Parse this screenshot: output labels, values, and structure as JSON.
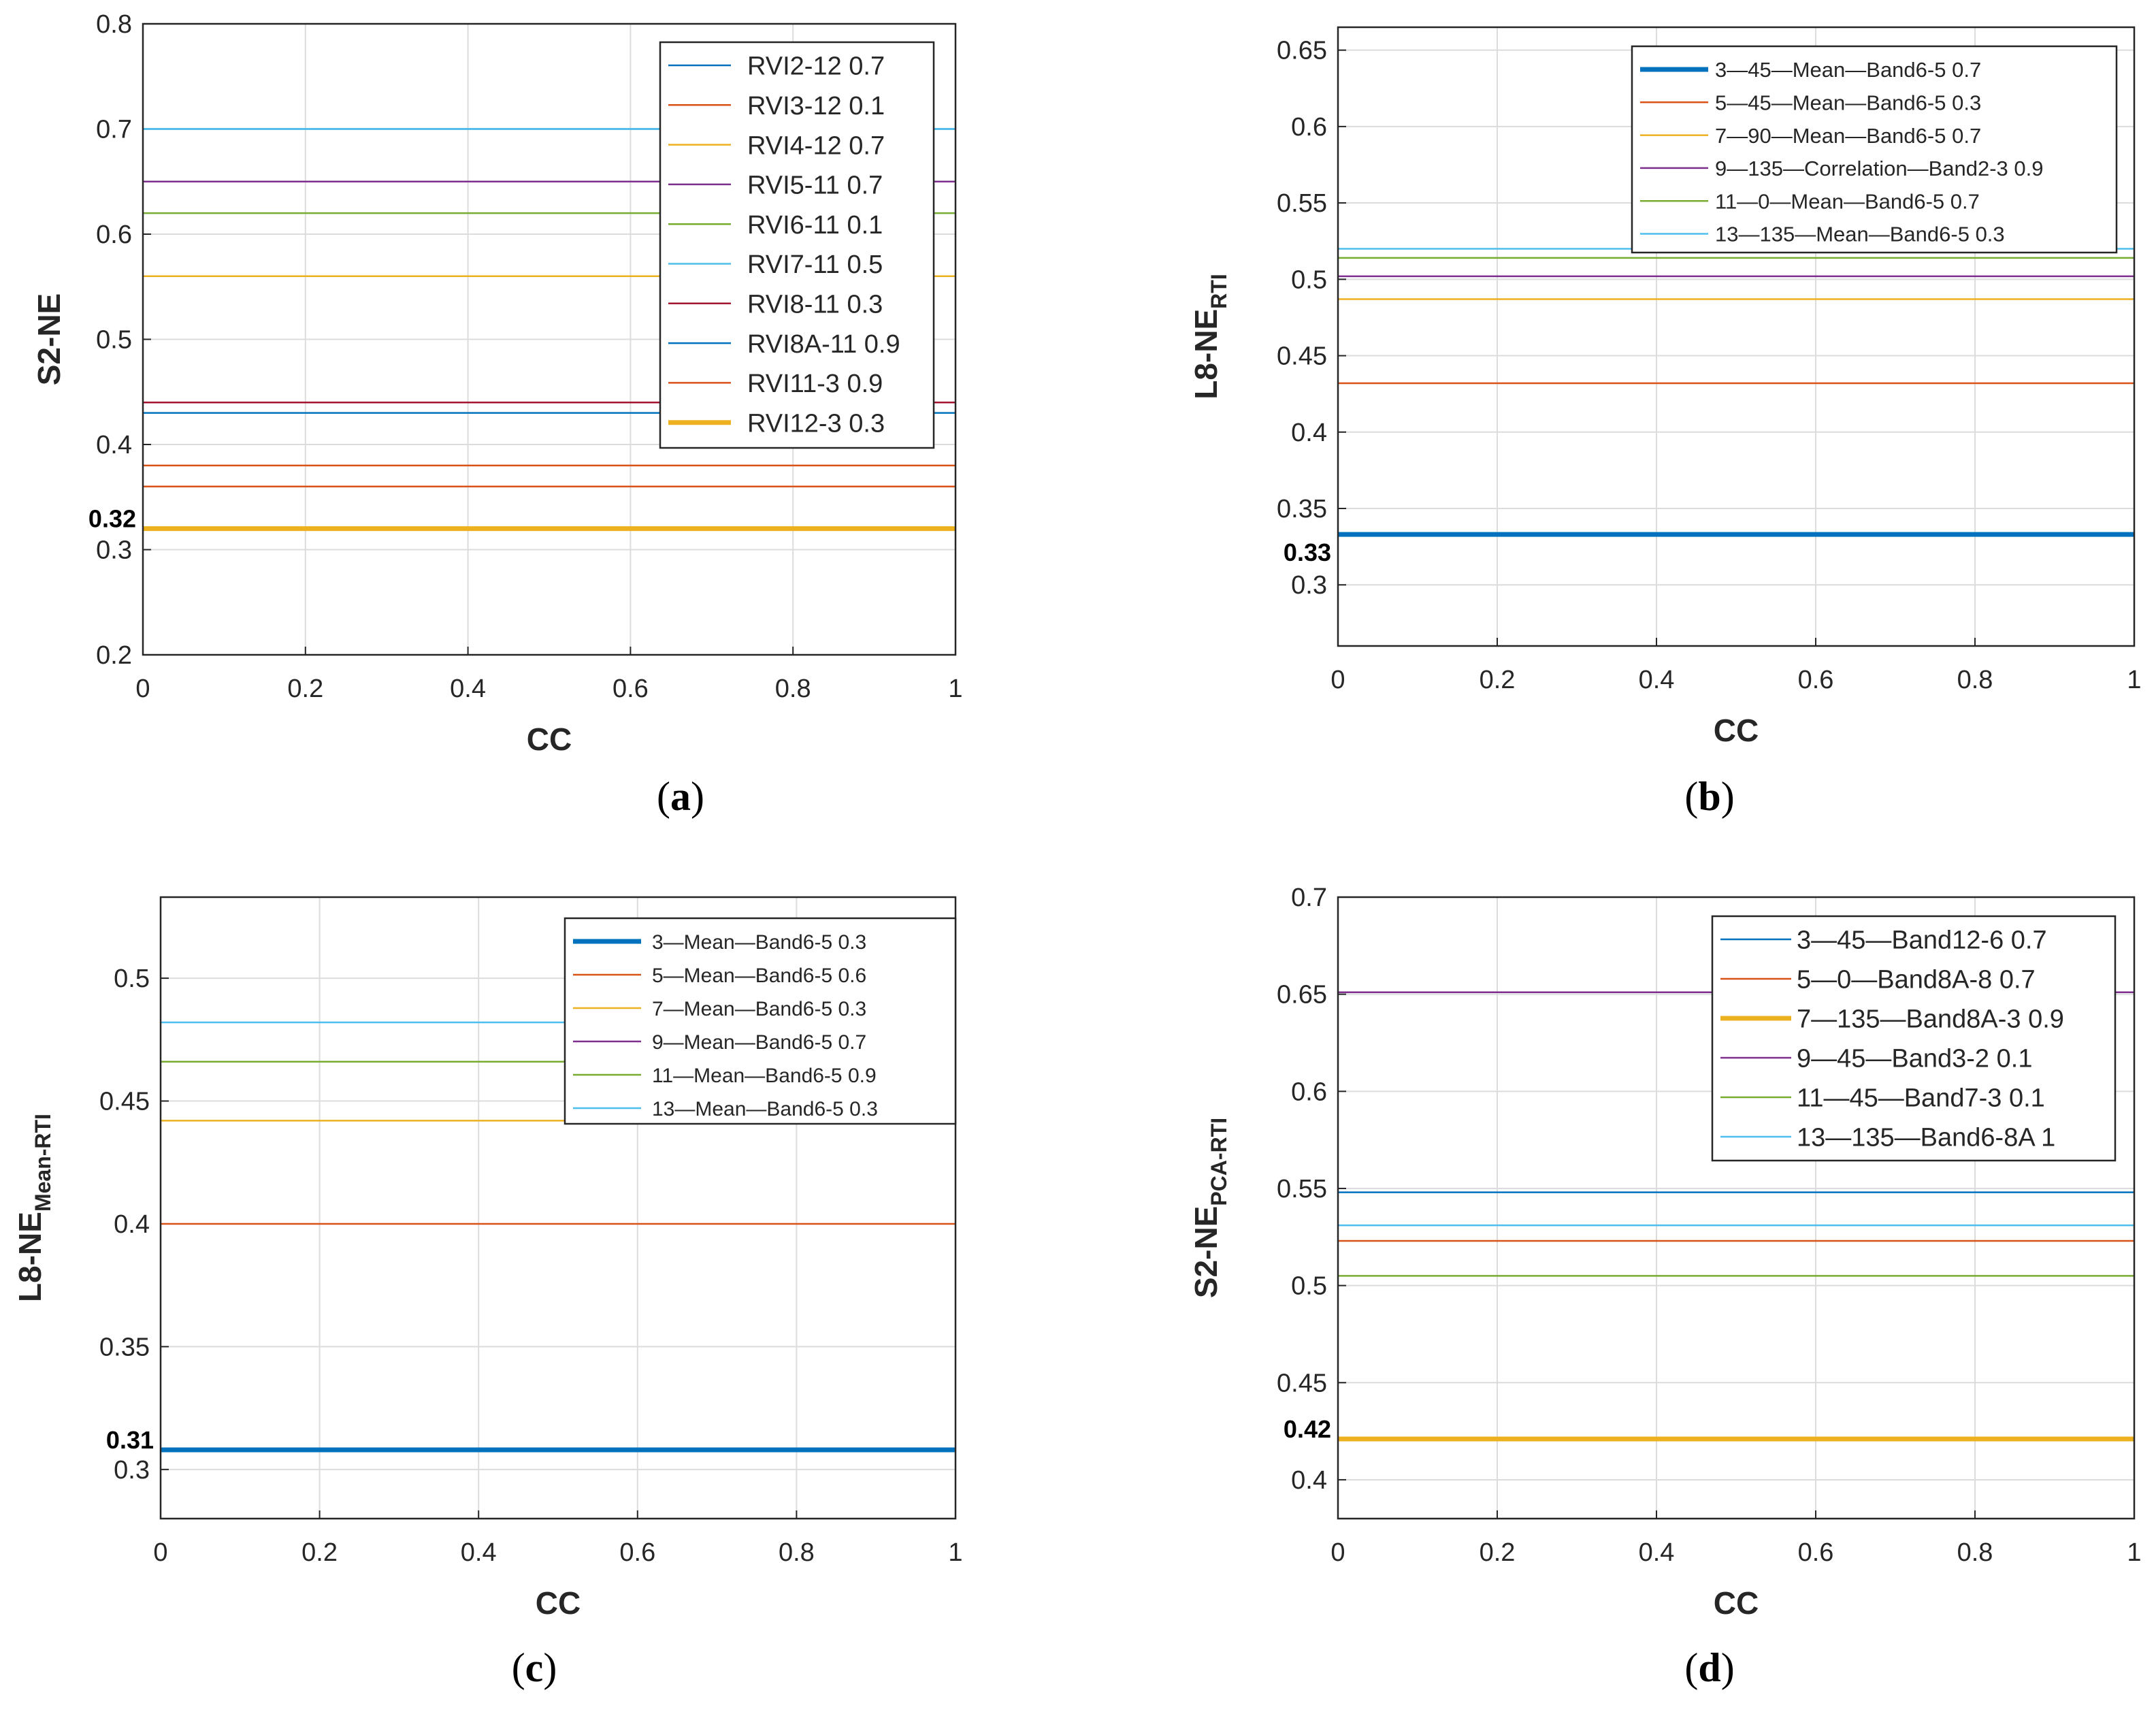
{
  "colors": {
    "c1": "#0072BD",
    "c2": "#D95319",
    "c3": "#EDB120",
    "c4": "#7E2F8E",
    "c5": "#77AC30",
    "c6": "#4DBEEE",
    "c7": "#A2142F",
    "grid": "#dcdcdc",
    "axis": "#262626"
  },
  "chart_data": [
    {
      "id": "a",
      "type": "line",
      "panel_label": {
        "open": "(",
        "letter": "a",
        "close": ")"
      },
      "xlabel": "CC",
      "ylabel": "S2-NE",
      "ylabel_sub": "",
      "xlim": [
        0,
        1
      ],
      "ylim": [
        0.2,
        0.8
      ],
      "xticks": [
        "0",
        "0.2",
        "0.4",
        "0.6",
        "0.8",
        "1"
      ],
      "yticks": [
        "0.2",
        "0.3",
        "0.4",
        "0.5",
        "0.6",
        "0.7",
        "0.8"
      ],
      "legend_position": "top-right",
      "annotation": {
        "text": "0.32",
        "value": 0.32
      },
      "series": [
        {
          "name": "RVI2-12 0.7",
          "value": 0.7,
          "color": "#0072BD",
          "highlight": false
        },
        {
          "name": "RVI3-12 0.1",
          "value": 0.36,
          "color": "#D95319",
          "highlight": false
        },
        {
          "name": "RVI4-12 0.7",
          "value": 0.56,
          "color": "#EDB120",
          "highlight": false
        },
        {
          "name": "RVI5-11 0.7",
          "value": 0.65,
          "color": "#7E2F8E",
          "highlight": false
        },
        {
          "name": "RVI6-11 0.1",
          "value": 0.62,
          "color": "#77AC30",
          "highlight": false
        },
        {
          "name": "RVI7-11 0.5",
          "value": 0.7,
          "color": "#4DBEEE",
          "highlight": false
        },
        {
          "name": "RVI8-11 0.3",
          "value": 0.44,
          "color": "#A2142F",
          "highlight": false
        },
        {
          "name": "RVI8A-11 0.9",
          "value": 0.43,
          "color": "#0072BD",
          "highlight": false
        },
        {
          "name": "RVI11-3 0.9",
          "value": 0.38,
          "color": "#D95319",
          "highlight": false
        },
        {
          "name": "RVI12-3 0.3",
          "value": 0.32,
          "color": "#EDB120",
          "highlight": true
        }
      ]
    },
    {
      "id": "b",
      "type": "line",
      "panel_label": {
        "open": "(",
        "letter": "b",
        "close": ")"
      },
      "xlabel": "CC",
      "ylabel": "L8-NE",
      "ylabel_sub": "RTI",
      "xlim": [
        0,
        1
      ],
      "ylim": [
        0.26,
        0.665
      ],
      "xticks": [
        "0",
        "0.2",
        "0.4",
        "0.6",
        "0.8",
        "1"
      ],
      "yticks": [
        "0.3",
        "0.35",
        "0.4",
        "0.45",
        "0.5",
        "0.55",
        "0.6",
        "0.65"
      ],
      "legend_position": "top-right",
      "annotation": {
        "text": "0.33",
        "value": 0.33
      },
      "series": [
        {
          "name": "3—45—Mean—Band6-5 0.7",
          "value": 0.333,
          "color": "#0072BD",
          "highlight": true
        },
        {
          "name": "5—45—Mean—Band6-5 0.3",
          "value": 0.432,
          "color": "#D95319",
          "highlight": false
        },
        {
          "name": "7—90—Mean—Band6-5 0.7",
          "value": 0.487,
          "color": "#EDB120",
          "highlight": false
        },
        {
          "name": "9—135—Correlation—Band2-3 0.9",
          "value": 0.502,
          "color": "#7E2F8E",
          "highlight": false
        },
        {
          "name": "11—0—Mean—Band6-5 0.7",
          "value": 0.514,
          "color": "#77AC30",
          "highlight": false
        },
        {
          "name": "13—135—Mean—Band6-5 0.3",
          "value": 0.52,
          "color": "#4DBEEE",
          "highlight": false
        }
      ]
    },
    {
      "id": "c",
      "type": "line",
      "panel_label": {
        "open": "(",
        "letter": "c",
        "close": ")"
      },
      "xlabel": "CC",
      "ylabel": "L8-NE",
      "ylabel_sub": "Mean-RTI",
      "xlim": [
        0,
        1
      ],
      "ylim": [
        0.28,
        0.533
      ],
      "xticks": [
        "0",
        "0.2",
        "0.4",
        "0.6",
        "0.8",
        "1"
      ],
      "yticks": [
        "0.3",
        "0.35",
        "0.4",
        "0.45",
        "0.5"
      ],
      "legend_position": "top-right",
      "annotation": {
        "text": "0.31",
        "value": 0.308
      },
      "series": [
        {
          "name": "3—Mean—Band6-5 0.3",
          "value": 0.308,
          "color": "#0072BD",
          "highlight": true
        },
        {
          "name": "5—Mean—Band6-5 0.6",
          "value": 0.4,
          "color": "#D95319",
          "highlight": false
        },
        {
          "name": "7—Mean—Band6-5 0.3",
          "value": 0.442,
          "color": "#EDB120",
          "highlight": false
        },
        {
          "name": "9—Mean—Band6-5 0.7",
          "value": 0.466,
          "color": "#7E2F8E",
          "highlight": false
        },
        {
          "name": "11—Mean—Band6-5 0.9",
          "value": 0.466,
          "color": "#77AC30",
          "highlight": false
        },
        {
          "name": "13—Mean—Band6-5 0.3",
          "value": 0.482,
          "color": "#4DBEEE",
          "highlight": false
        }
      ]
    },
    {
      "id": "d",
      "type": "line",
      "panel_label": {
        "open": "(",
        "letter": "d",
        "close": ")"
      },
      "xlabel": "CC",
      "ylabel": "S2-NE",
      "ylabel_sub": "PCA-RTI",
      "xlim": [
        0,
        1
      ],
      "ylim": [
        0.38,
        0.7
      ],
      "xticks": [
        "0",
        "0.2",
        "0.4",
        "0.6",
        "0.8",
        "1"
      ],
      "yticks": [
        "0.4",
        "0.45",
        "0.5",
        "0.55",
        "0.6",
        "0.65",
        "0.7"
      ],
      "legend_position": "top-right",
      "annotation": {
        "text": "0.42",
        "value": 0.421
      },
      "series": [
        {
          "name": "3—45—Band12-6 0.7",
          "value": 0.548,
          "color": "#0072BD",
          "highlight": false
        },
        {
          "name": "5—0—Band8A-8 0.7",
          "value": 0.523,
          "color": "#D95319",
          "highlight": false
        },
        {
          "name": "7—135—Band8A-3 0.9",
          "value": 0.421,
          "color": "#EDB120",
          "highlight": true
        },
        {
          "name": "9—45—Band3-2 0.1",
          "value": 0.651,
          "color": "#7E2F8E",
          "highlight": false
        },
        {
          "name": "11—45—Band7-3 0.1",
          "value": 0.505,
          "color": "#77AC30",
          "highlight": false
        },
        {
          "name": "13—135—Band6-8A 1",
          "value": 0.531,
          "color": "#4DBEEE",
          "highlight": false
        }
      ]
    }
  ]
}
